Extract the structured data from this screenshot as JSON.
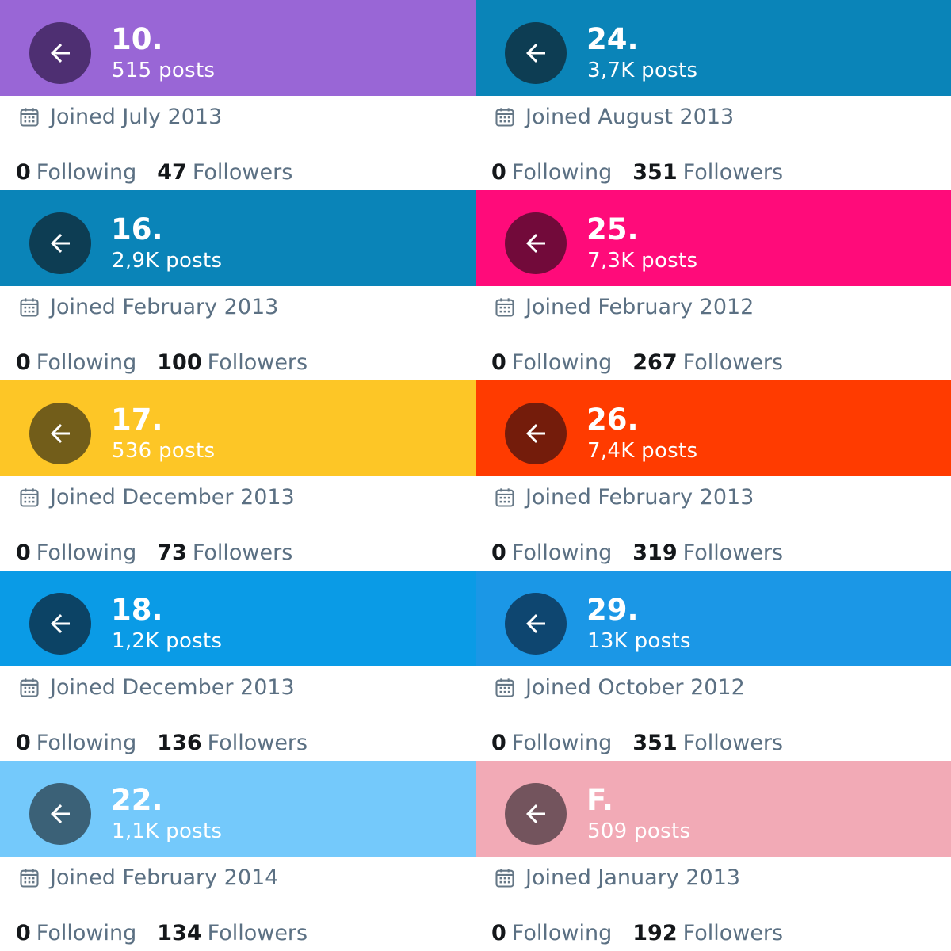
{
  "profiles": [
    {
      "banner_color": "#9966d6",
      "button_color": "#4e2f72",
      "handle": "10.",
      "posts": "515 posts",
      "joined": "Joined July 2013",
      "following_count": "0",
      "following_label": "Following",
      "followers_count": "47",
      "followers_label": "Followers"
    },
    {
      "banner_color": "#0a84b8",
      "button_color": "#0d3d53",
      "handle": "24.",
      "posts": "3,7K posts",
      "joined": "Joined August 2013",
      "following_count": "0",
      "following_label": "Following",
      "followers_count": "351",
      "followers_label": "Followers"
    },
    {
      "banner_color": "#0a84b8",
      "button_color": "#0d3d53",
      "handle": "16.",
      "posts": "2,9K posts",
      "joined": "Joined February 2013",
      "following_count": "0",
      "following_label": "Following",
      "followers_count": "100",
      "followers_label": "Followers"
    },
    {
      "banner_color": "#ff0b7a",
      "button_color": "#720a3a",
      "handle": "25.",
      "posts": "7,3K posts",
      "joined": "Joined February 2012",
      "following_count": "0",
      "following_label": "Following",
      "followers_count": "267",
      "followers_label": "Followers"
    },
    {
      "banner_color": "#fdc626",
      "button_color": "#725d1a",
      "handle": "17.",
      "posts": "536 posts",
      "joined": "Joined December 2013",
      "following_count": "0",
      "following_label": "Following",
      "followers_count": "73",
      "followers_label": "Followers"
    },
    {
      "banner_color": "#ff3b00",
      "button_color": "#741c0b",
      "handle": "26.",
      "posts": "7,4K posts",
      "joined": "Joined February 2013",
      "following_count": "0",
      "following_label": "Following",
      "followers_count": "319",
      "followers_label": "Followers"
    },
    {
      "banner_color": "#0a9be6",
      "button_color": "#0c4365",
      "handle": "18.",
      "posts": "1,2K posts",
      "joined": "Joined December 2013",
      "following_count": "0",
      "following_label": "Following",
      "followers_count": "136",
      "followers_label": "Followers"
    },
    {
      "banner_color": "#1b97e6",
      "button_color": "#0e4670",
      "handle": "29.",
      "posts": "13K posts",
      "joined": "Joined October 2012",
      "following_count": "0",
      "following_label": "Following",
      "followers_count": "351",
      "followers_label": "Followers"
    },
    {
      "banner_color": "#74c9fb",
      "button_color": "#3b6177",
      "handle": "22.",
      "posts": "1,1K posts",
      "joined": "Joined February 2014",
      "following_count": "0",
      "following_label": "Following",
      "followers_count": "134",
      "followers_label": "Followers"
    },
    {
      "banner_color": "#f2aab6",
      "button_color": "#73545d",
      "handle": "F.",
      "posts": "509 posts",
      "joined": "Joined January 2013",
      "following_count": "0",
      "following_label": "Following",
      "followers_count": "192",
      "followers_label": "Followers"
    }
  ],
  "icons": {
    "back": "arrow-left-icon",
    "calendar": "calendar-icon"
  }
}
